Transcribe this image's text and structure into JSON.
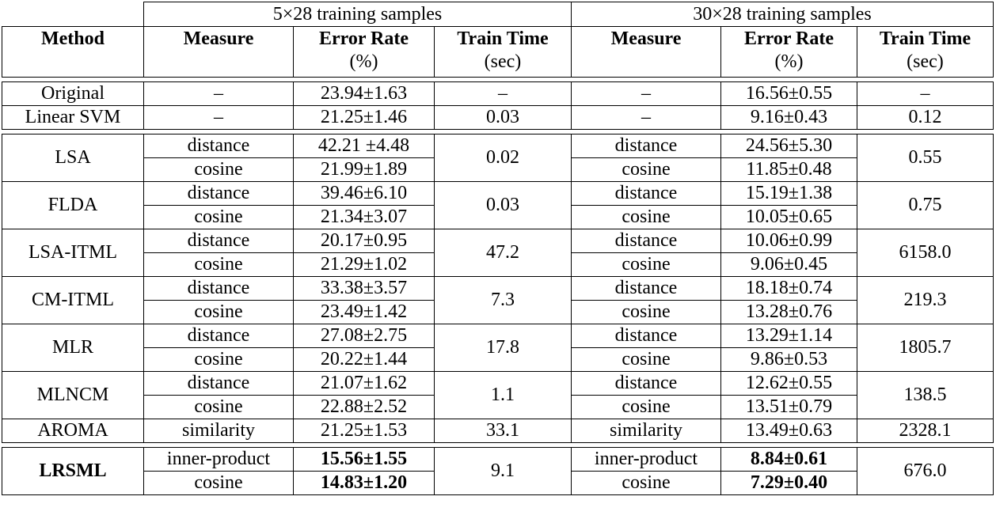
{
  "header": {
    "group1": "5×28 training samples",
    "group2": "30×28 training samples",
    "method": "Method",
    "measure": "Measure",
    "error_rate": "Error Rate",
    "error_unit": "(%)",
    "train_time": "Train Time",
    "time_unit": "(sec)"
  },
  "baselines": [
    {
      "method": "Original",
      "m1": "–",
      "e1": "23.94±1.63",
      "t1": "–",
      "m2": "–",
      "e2": "16.56±0.55",
      "t2": "–"
    },
    {
      "method": "Linear SVM",
      "m1": "–",
      "e1": "21.25±1.46",
      "t1": "0.03",
      "m2": "–",
      "e2": "9.16±0.43",
      "t2": "0.12"
    }
  ],
  "methods": [
    {
      "name": "LSA",
      "t1": "0.02",
      "t2": "0.55",
      "rows": [
        {
          "m1": "distance",
          "e1": "42.21 ±4.48",
          "m2": "distance",
          "e2": "24.56±5.30"
        },
        {
          "m1": "cosine",
          "e1": "21.99±1.89",
          "m2": "cosine",
          "e2": "11.85±0.48"
        }
      ]
    },
    {
      "name": "FLDA",
      "t1": "0.03",
      "t2": "0.75",
      "rows": [
        {
          "m1": "distance",
          "e1": "39.46±6.10",
          "m2": "distance",
          "e2": "15.19±1.38"
        },
        {
          "m1": "cosine",
          "e1": "21.34±3.07",
          "m2": "cosine",
          "e2": "10.05±0.65"
        }
      ]
    },
    {
      "name": "LSA-ITML",
      "t1": "47.2",
      "t2": "6158.0",
      "rows": [
        {
          "m1": "distance",
          "e1": "20.17±0.95",
          "m2": "distance",
          "e2": "10.06±0.99"
        },
        {
          "m1": "cosine",
          "e1": "21.29±1.02",
          "m2": "cosine",
          "e2": "9.06±0.45"
        }
      ]
    },
    {
      "name": "CM-ITML",
      "t1": "7.3",
      "t2": "219.3",
      "rows": [
        {
          "m1": "distance",
          "e1": "33.38±3.57",
          "m2": "distance",
          "e2": "18.18±0.74"
        },
        {
          "m1": "cosine",
          "e1": "23.49±1.42",
          "m2": "cosine",
          "e2": "13.28±0.76"
        }
      ]
    },
    {
      "name": "MLR",
      "t1": "17.8",
      "t2": "1805.7",
      "rows": [
        {
          "m1": "distance",
          "e1": "27.08±2.75",
          "m2": "distance",
          "e2": "13.29±1.14"
        },
        {
          "m1": "cosine",
          "e1": "20.22±1.44",
          "m2": "cosine",
          "e2": "9.86±0.53"
        }
      ]
    },
    {
      "name": "MLNCM",
      "t1": "1.1",
      "t2": "138.5",
      "rows": [
        {
          "m1": "distance",
          "e1": "21.07±1.62",
          "m2": "distance",
          "e2": "12.62±0.55"
        },
        {
          "m1": "cosine",
          "e1": "22.88±2.52",
          "m2": "cosine",
          "e2": "13.51±0.79"
        }
      ]
    }
  ],
  "aroma": {
    "method": "AROMA",
    "m1": "similarity",
    "e1": "21.25±1.53",
    "t1": "33.1",
    "m2": "similarity",
    "e2": "13.49±0.63",
    "t2": "2328.1"
  },
  "lrsml": {
    "name": "LRSML",
    "t1": "9.1",
    "t2": "676.0",
    "rows": [
      {
        "m1": "inner-product",
        "e1": "15.56±1.55",
        "m2": "inner-product",
        "e2": "8.84±0.61"
      },
      {
        "m1": "cosine",
        "e1": "14.83±1.20",
        "m2": "cosine",
        "e2": "7.29±0.40"
      }
    ]
  }
}
